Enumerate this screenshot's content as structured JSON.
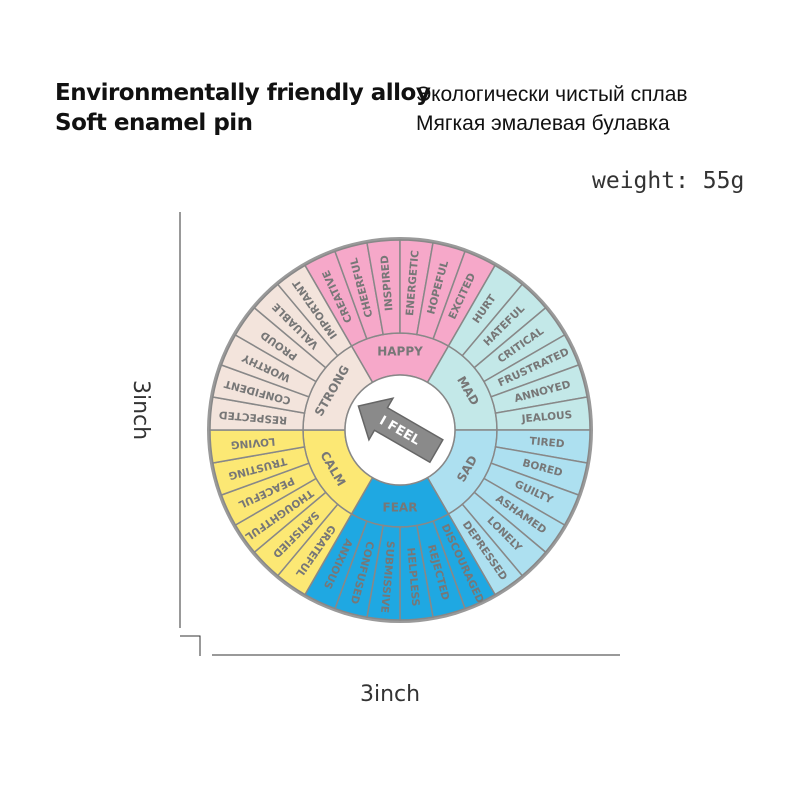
{
  "header": {
    "left": [
      "Environmentally friendly alloy",
      "Soft enamel pin"
    ],
    "right": [
      "Экологически чистый сплав",
      "Мягкая эмалевая булавка"
    ]
  },
  "weight": "weight: 55g",
  "dimensions": {
    "height": "3inch",
    "width": "3inch"
  },
  "wheel": {
    "center": "I FEEL",
    "sections": [
      {
        "name": "HAPPY",
        "color": "#f6a8c9",
        "words": [
          "CREATIVE",
          "CHEERFUL",
          "INSPIRED",
          "ENERGETIC",
          "HOPEFUL",
          "EXCITED"
        ]
      },
      {
        "name": "MAD",
        "color": "#c3e8e8",
        "words": [
          "HURT",
          "HATEFUL",
          "CRITICAL",
          "FRUSTRATED",
          "ANNOYED",
          "JEALOUS"
        ]
      },
      {
        "name": "SAD",
        "color": "#ade0f0",
        "words": [
          "TIRED",
          "BORED",
          "GUILTY",
          "ASHAMED",
          "LONELY",
          "DEPRESSED"
        ]
      },
      {
        "name": "FEAR",
        "color": "#1fa8e2",
        "words": [
          "DISCOURAGED",
          "REJECTED",
          "HELPLESS",
          "SUBMISSIVE",
          "CONFUSED",
          "ANXIOUS"
        ]
      },
      {
        "name": "CALM",
        "color": "#fce874",
        "words": [
          "GRATEFUL",
          "SATISFIED",
          "THOUGHTFUL",
          "PEACEFUL",
          "TRUSTING",
          "LOVING"
        ]
      },
      {
        "name": "STRONG",
        "color": "#f3e4dc",
        "words": [
          "RESPECTED",
          "CONFIDENT",
          "WORTHY",
          "PROUD",
          "VALUABLE",
          "IMPORTANT"
        ]
      }
    ]
  }
}
